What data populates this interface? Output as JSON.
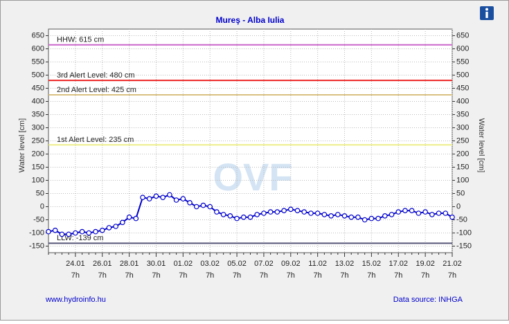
{
  "chart_data": {
    "type": "line",
    "title": "Mureş - Alba Iulia",
    "ylabel": "Water level [cm]",
    "y2label": "Water level [cm]",
    "watermark": "OVF",
    "footer_left": "www.hydroinfo.hu",
    "footer_right": "Data source: INHGA",
    "x_tick_sublabel": "7h",
    "categories": [
      null,
      null,
      null,
      null,
      "24.01",
      null,
      null,
      null,
      "26.01",
      null,
      null,
      null,
      "28.01",
      null,
      null,
      null,
      "30.01",
      null,
      null,
      null,
      "01.02",
      null,
      null,
      null,
      "03.02",
      null,
      null,
      null,
      "05.02",
      null,
      null,
      null,
      "07.02",
      null,
      null,
      null,
      "09.02",
      null,
      null,
      null,
      "11.02",
      null,
      null,
      null,
      "13.02",
      null,
      null,
      null,
      "15.02",
      null,
      null,
      null,
      "17.02",
      null,
      null,
      null,
      "19.02",
      null,
      null,
      null,
      "21.02"
    ],
    "series": [
      {
        "name": "Water level",
        "color": "#0000cc",
        "values": [
          -95,
          -90,
          -105,
          -105,
          -100,
          -95,
          -100,
          -95,
          -90,
          -80,
          -75,
          -60,
          -40,
          -45,
          35,
          30,
          40,
          35,
          45,
          25,
          30,
          15,
          0,
          5,
          0,
          -20,
          -30,
          -35,
          -45,
          -40,
          -40,
          -30,
          -25,
          -20,
          -20,
          -15,
          -10,
          -15,
          -20,
          -25,
          -25,
          -30,
          -35,
          -30,
          -35,
          -40,
          -40,
          -50,
          -45,
          -45,
          -35,
          -30,
          -20,
          -15,
          -15,
          -25,
          -20,
          -30,
          -25,
          -25,
          -40
        ]
      }
    ],
    "thresholds": [
      {
        "label": "HHW: 615 cm",
        "value": 615,
        "color": "#cc66cc"
      },
      {
        "label": "3rd Alert Level: 480 cm",
        "value": 480,
        "color": "#ee2222"
      },
      {
        "label": "2nd Alert Level: 425 cm",
        "value": 425,
        "color": "#d8c080"
      },
      {
        "label": "1st Alert Level: 235 cm",
        "value": 235,
        "color": "#eeee88"
      },
      {
        "label": "LLW: -139 cm",
        "value": -139,
        "color": "#555577"
      }
    ],
    "ylim": [
      -175,
      675
    ],
    "yticks": [
      -150,
      -100,
      -50,
      0,
      50,
      100,
      150,
      200,
      250,
      300,
      350,
      400,
      450,
      500,
      550,
      600,
      650
    ],
    "grid": true
  }
}
